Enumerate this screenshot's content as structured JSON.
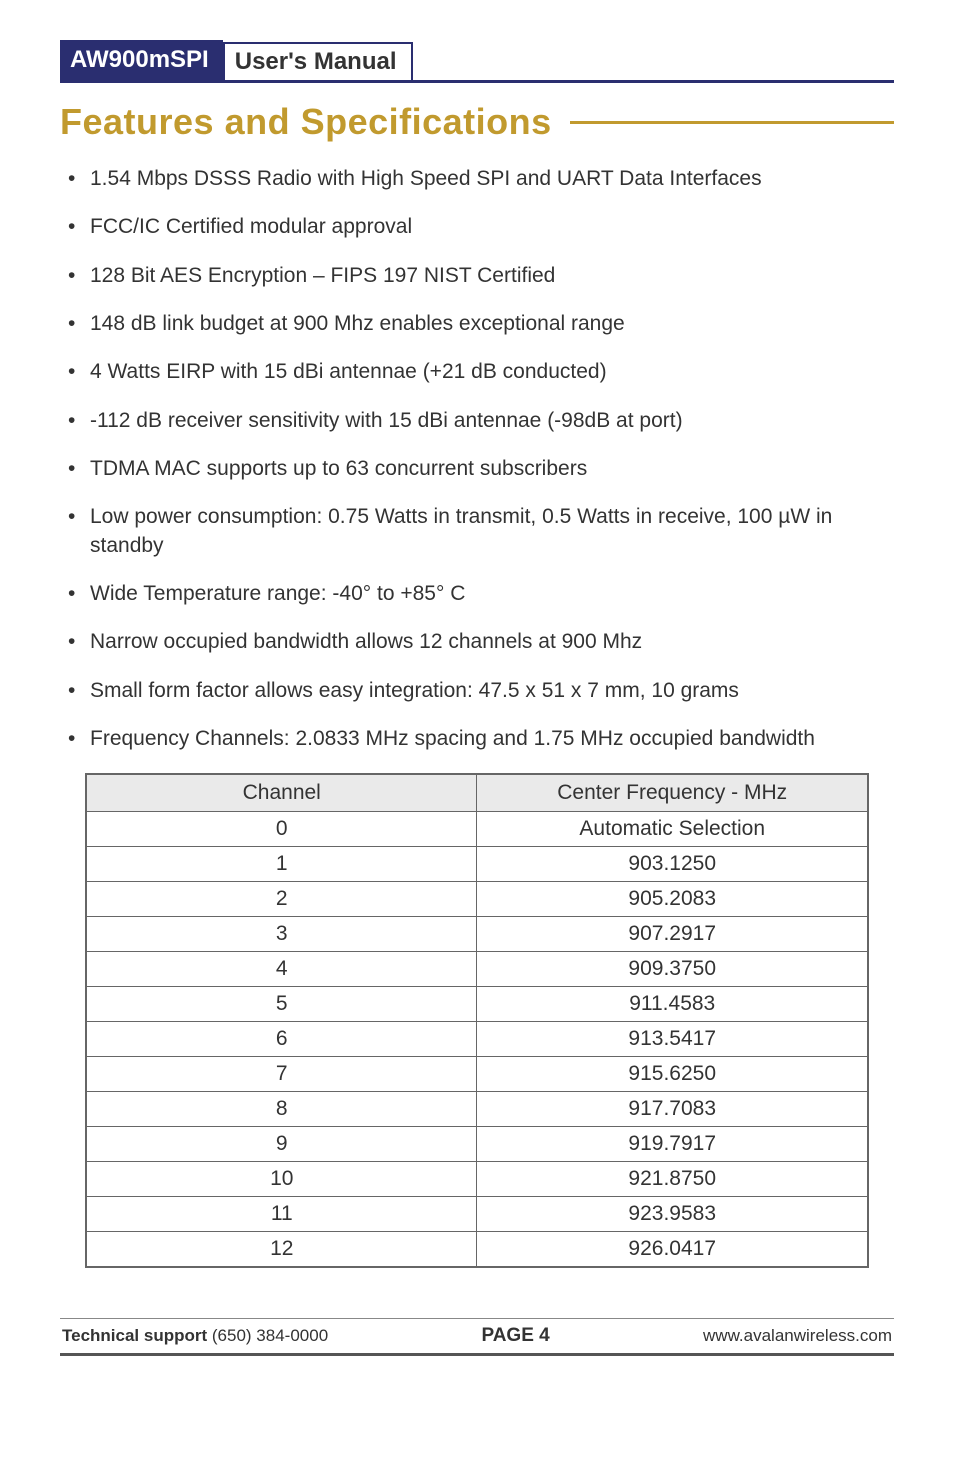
{
  "header": {
    "model": "AW900mSPI",
    "manual": "User's Manual"
  },
  "section": {
    "title": "Features and Specifications"
  },
  "features": [
    "1.54 Mbps DSSS Radio with High Speed SPI and UART Data Interfaces",
    "FCC/IC Certified modular approval",
    "128 Bit AES Encryption – FIPS 197 NIST Certified",
    "148 dB link budget at 900 Mhz enables exceptional range",
    "4 Watts EIRP with 15 dBi antennae (+21 dB conducted)",
    "-112 dB receiver sensitivity with 15 dBi antennae (-98dB at port)",
    "TDMA MAC supports up to 63 concurrent subscribers",
    "Low power consumption: 0.75 Watts in transmit, 0.5 Watts in receive, 100 µW in standby",
    "Wide Temperature range: -40° to +85° C",
    "Narrow occupied bandwidth allows 12 channels at 900 Mhz",
    "Small form factor allows easy integration: 47.5 x 51 x 7 mm, 10 grams",
    "Frequency Channels: 2.0833 MHz spacing and 1.75 MHz occupied bandwidth"
  ],
  "freq_table": {
    "headers": [
      "Channel",
      "Center Frequency - MHz"
    ],
    "rows": [
      [
        "0",
        "Automatic Selection"
      ],
      [
        "1",
        "903.1250"
      ],
      [
        "2",
        "905.2083"
      ],
      [
        "3",
        "907.2917"
      ],
      [
        "4",
        "909.3750"
      ],
      [
        "5",
        "911.4583"
      ],
      [
        "6",
        "913.5417"
      ],
      [
        "7",
        "915.6250"
      ],
      [
        "8",
        "917.7083"
      ],
      [
        "9",
        "919.7917"
      ],
      [
        "10",
        "921.8750"
      ],
      [
        "11",
        "923.9583"
      ],
      [
        "12",
        "926.0417"
      ]
    ]
  },
  "footer": {
    "support_label": "Technical support",
    "support_phone": "(650) 384-0000",
    "page": "PAGE 4",
    "url": "www.avalanwireless.com"
  },
  "colors": {
    "brand_blue": "#2a2e70",
    "accent_gold": "#c19a2e",
    "table_header_bg": "#eaeaea",
    "table_border": "#666666",
    "text": "#333333",
    "footer_rule_thin": "#888888",
    "footer_rule_thick": "#555555",
    "background": "#ffffff"
  },
  "fonts": {
    "body_family": "Trebuchet MS",
    "title_family": "Arial",
    "section_title_size_pt": 27,
    "body_size_pt": 16,
    "header_size_pt": 18,
    "footer_size_pt": 13
  }
}
